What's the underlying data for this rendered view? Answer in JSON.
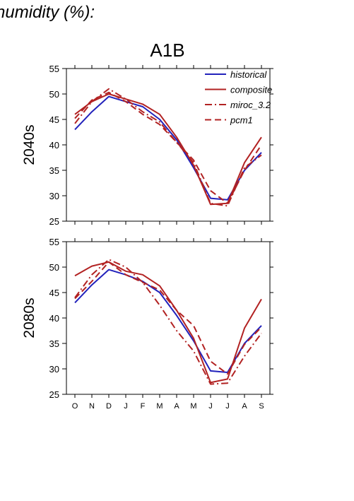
{
  "header": {
    "text": "humidity (%):"
  },
  "panel_title": "A1B",
  "colors": {
    "historical": "#2222bb",
    "composite": "#b22222",
    "miroc_3.2": "#b22222",
    "pcm1": "#b22222"
  },
  "chart_data": [
    {
      "type": "line",
      "ylabel": "2040s",
      "ylim": [
        25,
        55
      ],
      "yticks": [
        25,
        30,
        35,
        40,
        45,
        50,
        55
      ],
      "categories": [
        "O",
        "N",
        "D",
        "J",
        "F",
        "M",
        "A",
        "M",
        "J",
        "J",
        "A",
        "S"
      ],
      "show_xtick_labels": false,
      "legend_position": "top-right",
      "series": [
        {
          "name": "historical",
          "style": "solid",
          "color": "#2222bb",
          "values": [
            43.0,
            46.5,
            49.5,
            48.5,
            47.5,
            45.0,
            41.0,
            35.5,
            29.5,
            29.2,
            35.0,
            38.5
          ]
        },
        {
          "name": "composite",
          "style": "solid",
          "color": "#b22222",
          "values": [
            46.0,
            48.5,
            50.0,
            49.0,
            48.0,
            46.0,
            41.5,
            36.0,
            28.3,
            28.5,
            36.5,
            41.5
          ]
        },
        {
          "name": "miroc_3.2",
          "style": "dashdot",
          "color": "#b22222",
          "values": [
            44.2,
            48.5,
            51.0,
            49.0,
            46.5,
            44.5,
            40.5,
            36.5,
            28.5,
            28.0,
            35.5,
            38.0
          ]
        },
        {
          "name": "pcm1",
          "style": "dash",
          "color": "#b22222",
          "values": [
            45.2,
            48.8,
            50.3,
            48.5,
            46.0,
            44.0,
            40.5,
            37.0,
            31.0,
            28.5,
            35.0,
            40.0
          ]
        }
      ]
    },
    {
      "type": "line",
      "ylabel": "2080s",
      "ylim": [
        25,
        55
      ],
      "yticks": [
        25,
        30,
        35,
        40,
        45,
        50,
        55
      ],
      "categories": [
        "O",
        "N",
        "D",
        "J",
        "F",
        "M",
        "A",
        "M",
        "J",
        "J",
        "A",
        "S"
      ],
      "show_xtick_labels": true,
      "series": [
        {
          "name": "historical",
          "style": "solid",
          "color": "#2222bb",
          "values": [
            43.0,
            46.5,
            49.5,
            48.5,
            47.2,
            45.0,
            40.5,
            35.5,
            29.6,
            29.3,
            35.0,
            38.5
          ]
        },
        {
          "name": "composite",
          "style": "solid",
          "color": "#b22222",
          "values": [
            48.3,
            50.2,
            51.0,
            49.2,
            48.5,
            46.3,
            41.5,
            36.0,
            27.3,
            28.0,
            38.0,
            43.7
          ]
        },
        {
          "name": "miroc_3.2",
          "style": "dashdot",
          "color": "#b22222",
          "values": [
            44.0,
            48.5,
            51.5,
            50.0,
            47.0,
            42.5,
            37.5,
            33.5,
            27.0,
            27.2,
            32.5,
            37.0
          ]
        },
        {
          "name": "pcm1",
          "style": "dash",
          "color": "#b22222",
          "values": [
            43.8,
            47.2,
            51.0,
            48.5,
            47.0,
            45.5,
            41.5,
            38.5,
            31.5,
            29.0,
            34.8,
            38.2
          ]
        }
      ]
    }
  ]
}
